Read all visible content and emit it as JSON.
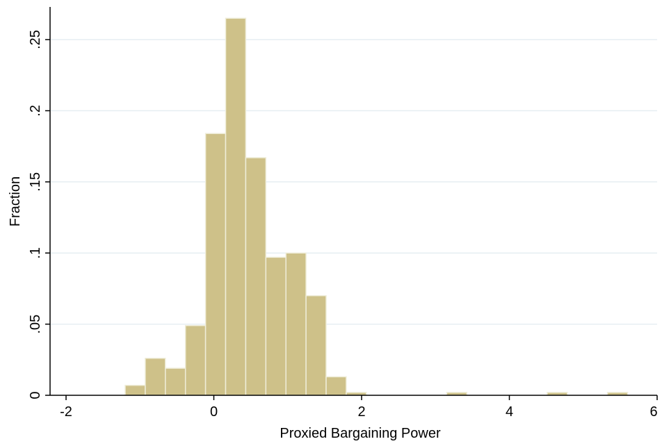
{
  "chart_data": {
    "type": "bar",
    "title": "",
    "xlabel": "Proxied Bargaining Power",
    "ylabel": "Fraction",
    "xlim": [
      -2.0,
      6.0
    ],
    "ylim": [
      0,
      0.27
    ],
    "grid": true,
    "xticks": [
      {
        "value": -2,
        "label": "-2"
      },
      {
        "value": 0,
        "label": "0"
      },
      {
        "value": 2,
        "label": "2"
      },
      {
        "value": 4,
        "label": "4"
      },
      {
        "value": 6,
        "label": "6"
      }
    ],
    "yticks": [
      {
        "value": 0,
        "label": "0"
      },
      {
        "value": 0.05,
        "label": ".05"
      },
      {
        "value": 0.1,
        "label": ".1"
      },
      {
        "value": 0.15,
        "label": ".15"
      },
      {
        "value": 0.2,
        "label": ".2"
      },
      {
        "value": 0.25,
        "label": ".25"
      }
    ],
    "bin_width": 0.272,
    "bins": [
      {
        "x0": -1.2,
        "value": 0.007
      },
      {
        "x0": -0.928,
        "value": 0.026
      },
      {
        "x0": -0.656,
        "value": 0.019
      },
      {
        "x0": -0.384,
        "value": 0.049
      },
      {
        "x0": -0.112,
        "value": 0.184
      },
      {
        "x0": 0.16,
        "value": 0.265
      },
      {
        "x0": 0.432,
        "value": 0.167
      },
      {
        "x0": 0.704,
        "value": 0.097
      },
      {
        "x0": 0.976,
        "value": 0.1
      },
      {
        "x0": 1.248,
        "value": 0.07
      },
      {
        "x0": 1.52,
        "value": 0.013
      },
      {
        "x0": 1.792,
        "value": 0.002
      },
      {
        "x0": 3.152,
        "value": 0.002
      },
      {
        "x0": 4.512,
        "value": 0.002
      },
      {
        "x0": 5.328,
        "value": 0.002
      }
    ],
    "colors": {
      "bar_fill": "#cec189",
      "bar_stroke": "#efedd9",
      "grid": "#e6eef2",
      "axis": "#000000"
    }
  }
}
